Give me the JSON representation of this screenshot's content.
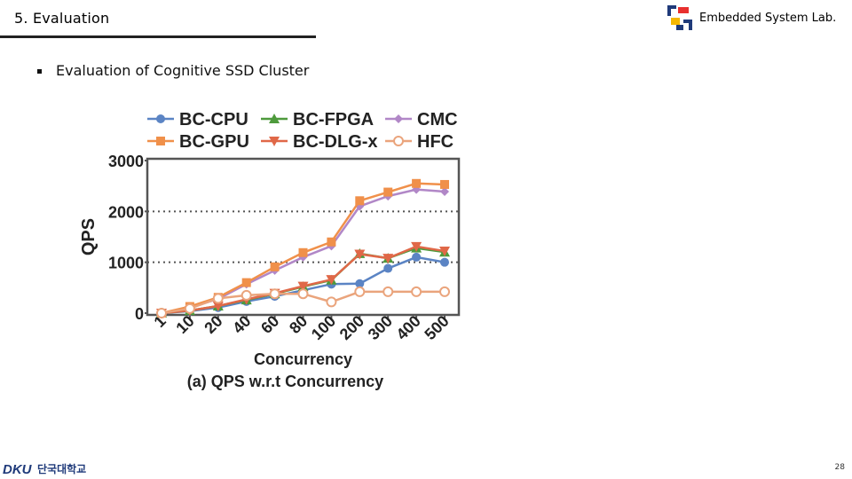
{
  "header": {
    "section": "5. Evaluation",
    "lab": "Embedded System Lab."
  },
  "bullet": "Evaluation of Cognitive SSD Cluster",
  "footer": {
    "university": "단국대학교",
    "page": "28"
  },
  "colors": {
    "cpu": "#5b84c4",
    "fpga": "#4e9a3c",
    "cmc": "#b187c7",
    "gpu": "#f0904a",
    "dlg": "#e06848",
    "hfc": "#eaa47c"
  },
  "chart_data": {
    "type": "line",
    "title": "(a) QPS w.r.t Concurrency",
    "xlabel": "Concurrency",
    "ylabel": "QPS",
    "ylim": [
      0,
      3000
    ],
    "yticks": [
      "0",
      "1000",
      "2000",
      "3000"
    ],
    "grid": "horizontal dotted",
    "legend_position": "top",
    "categories": [
      "1",
      "10",
      "20",
      "40",
      "60",
      "80",
      "100",
      "200",
      "300",
      "400",
      "500"
    ],
    "series": [
      {
        "name": "BC-CPU",
        "color": "#5b84c4",
        "marker": "circle",
        "values": [
          0,
          40,
          110,
          230,
          330,
          450,
          570,
          580,
          880,
          1100,
          1000
        ]
      },
      {
        "name": "BC-FPGA",
        "color": "#4e9a3c",
        "marker": "triangle",
        "values": [
          0,
          50,
          140,
          260,
          380,
          520,
          650,
          1170,
          1080,
          1280,
          1200
        ]
      },
      {
        "name": "CMC",
        "color": "#b187c7",
        "marker": "diamond",
        "values": [
          0,
          110,
          280,
          570,
          840,
          1100,
          1320,
          2100,
          2300,
          2430,
          2390
        ]
      },
      {
        "name": "BC-GPU",
        "color": "#f0904a",
        "marker": "square",
        "values": [
          0,
          130,
          310,
          600,
          910,
          1190,
          1400,
          2210,
          2380,
          2550,
          2530
        ]
      },
      {
        "name": "BC-DLG-x",
        "color": "#e06848",
        "marker": "triangle-down",
        "values": [
          0,
          50,
          140,
          270,
          390,
          530,
          660,
          1160,
          1080,
          1310,
          1220
        ]
      },
      {
        "name": "HFC",
        "color": "#eaa47c",
        "marker": "open-circle",
        "values": [
          0,
          90,
          290,
          350,
          380,
          380,
          220,
          420,
          420,
          420,
          420
        ]
      }
    ]
  }
}
